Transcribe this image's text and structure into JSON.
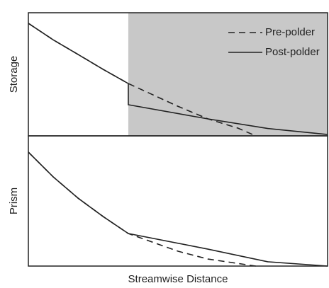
{
  "chart_data": [
    {
      "type": "line",
      "ylabel": "Storage",
      "xlim": [
        0,
        1
      ],
      "ylim": [
        0,
        1
      ],
      "shade": [
        0.334,
        1
      ],
      "shade_color": "#c8c8c8",
      "legend": "upper right",
      "series": [
        {
          "name": "Pre-polder",
          "color": "#222222",
          "style": "dashed",
          "x": [
            0,
            0.083,
            0.167,
            0.25,
            0.334,
            0.5,
            0.6,
            0.7,
            0.76
          ],
          "values": [
            0.914,
            0.78,
            0.66,
            0.54,
            0.425,
            0.24,
            0.138,
            0.063,
            0
          ]
        },
        {
          "name": "Post-polder",
          "color": "#222222",
          "style": "solid",
          "x": [
            0,
            0.083,
            0.167,
            0.25,
            0.334,
            0.334,
            0.6,
            0.8,
            1
          ],
          "values": [
            0.914,
            0.78,
            0.66,
            0.54,
            0.425,
            0.253,
            0.138,
            0.06,
            0.011
          ]
        }
      ]
    },
    {
      "type": "line",
      "ylabel": "Prism",
      "xlabel": "Streamwise Distance",
      "xlim": [
        0,
        1
      ],
      "ylim": [
        0,
        1
      ],
      "series": [
        {
          "color": "#222222",
          "style": "dashed",
          "x": [
            0,
            0.083,
            0.167,
            0.25,
            0.334,
            0.5,
            0.6,
            0.76
          ],
          "values": [
            0.875,
            0.685,
            0.52,
            0.38,
            0.25,
            0.114,
            0.054,
            0
          ]
        },
        {
          "color": "#222222",
          "style": "solid",
          "x": [
            0,
            0.083,
            0.167,
            0.25,
            0.334,
            0.6,
            0.8,
            1
          ],
          "values": [
            0.875,
            0.685,
            0.52,
            0.38,
            0.25,
            0.13,
            0.033,
            0
          ]
        }
      ]
    }
  ]
}
